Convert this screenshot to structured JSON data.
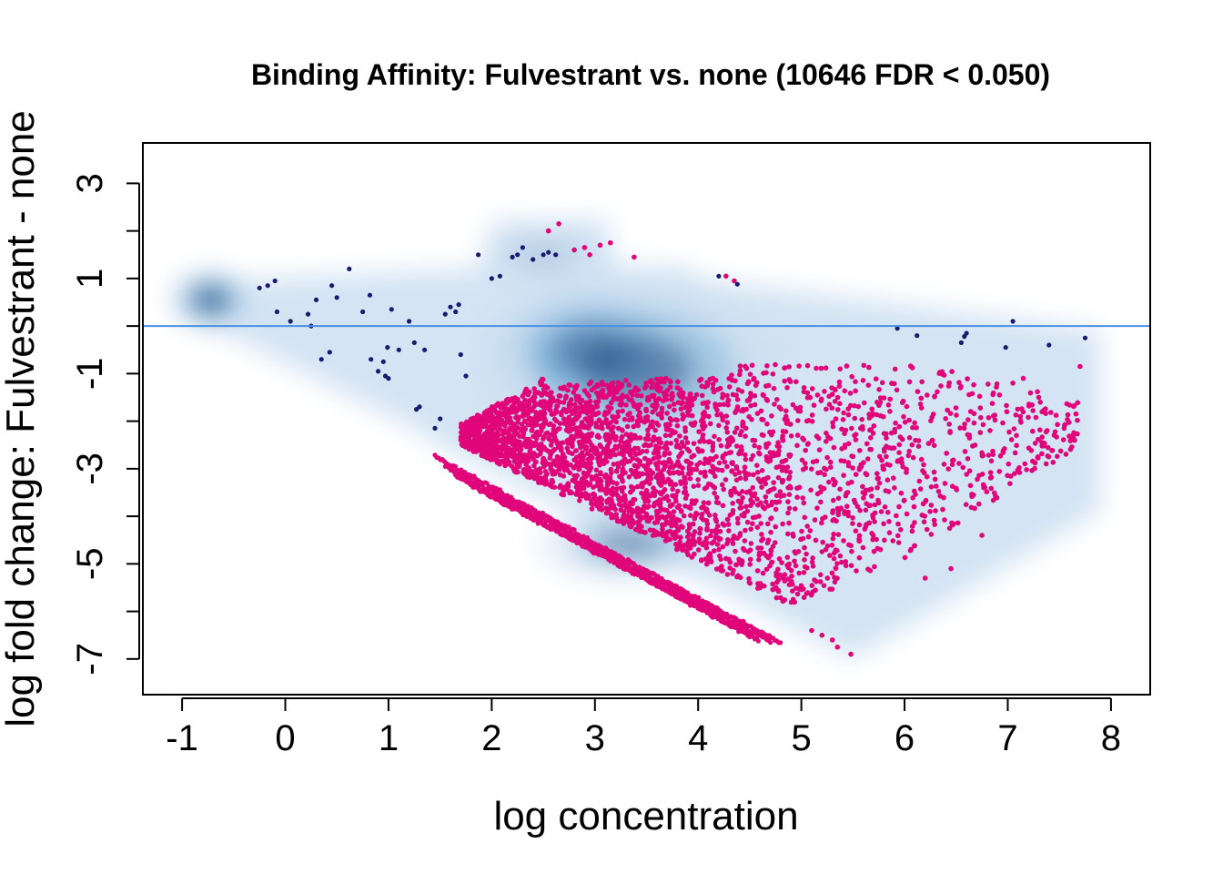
{
  "chart_data": {
    "type": "scatter",
    "title": "Binding Affinity: Fulvestrant vs. none (10646 FDR < 0.050)",
    "xlabel": "log concentration",
    "ylabel": "log fold change: Fulvestrant - none",
    "xlim": [
      -1.38,
      8.38
    ],
    "ylim": [
      -7.75,
      3.85
    ],
    "x_ticks": [
      -1,
      0,
      1,
      2,
      3,
      4,
      5,
      6,
      7,
      8
    ],
    "x_tick_labels": [
      "-1",
      "0",
      "1",
      "2",
      "3",
      "4",
      "5",
      "6",
      "7",
      "8"
    ],
    "y_ticks": [
      -7,
      -6,
      -5,
      -4,
      -3,
      -2,
      -1,
      0,
      1,
      2,
      3
    ],
    "y_tick_labels": [
      "-7",
      "",
      "-5",
      "",
      "-3",
      "",
      "-1",
      "",
      "1",
      "",
      "3"
    ],
    "reference_line_y": 0,
    "grid": false,
    "legend": "none",
    "colors": {
      "density_light": "#c6dbef",
      "density_mid": "#4292c6",
      "density_dark": "#08306b",
      "not_significant": "#1a1a6e",
      "significant": "#e0067a",
      "reference_line": "#4a90e2"
    },
    "density_regions": [
      {
        "x": -0.72,
        "y": 0.55,
        "sx": 0.22,
        "sy": 0.35,
        "w": 1.0
      },
      {
        "x": 2.95,
        "y": -0.5,
        "sx": 0.55,
        "sy": 0.75,
        "w": 1.0
      },
      {
        "x": 3.4,
        "y": -0.9,
        "sx": 0.8,
        "sy": 1.0,
        "w": 0.55
      },
      {
        "x": 3.3,
        "y": -4.6,
        "sx": 0.5,
        "sy": 0.45,
        "w": 0.45
      },
      {
        "x": 2.5,
        "y": 1.5,
        "sx": 0.4,
        "sy": 0.4,
        "w": 0.12
      }
    ],
    "nonsig_points": [
      [
        -0.25,
        0.8
      ],
      [
        -0.17,
        0.85
      ],
      [
        -0.1,
        0.95
      ],
      [
        -0.08,
        0.3
      ],
      [
        0.05,
        0.1
      ],
      [
        0.22,
        0.25
      ],
      [
        0.25,
        0.0
      ],
      [
        0.3,
        0.55
      ],
      [
        0.35,
        -0.7
      ],
      [
        0.43,
        -0.55
      ],
      [
        0.45,
        0.85
      ],
      [
        0.5,
        0.6
      ],
      [
        0.62,
        1.2
      ],
      [
        0.75,
        0.3
      ],
      [
        0.82,
        0.65
      ],
      [
        0.83,
        -0.7
      ],
      [
        0.9,
        -0.95
      ],
      [
        0.95,
        -0.75
      ],
      [
        0.97,
        -1.05
      ],
      [
        0.99,
        -0.45
      ],
      [
        1.0,
        -1.1
      ],
      [
        1.03,
        0.35
      ],
      [
        1.1,
        -0.5
      ],
      [
        1.2,
        0.1
      ],
      [
        1.25,
        -0.35
      ],
      [
        1.27,
        -1.75
      ],
      [
        1.35,
        -0.5
      ],
      [
        1.45,
        -2.15
      ],
      [
        1.55,
        0.25
      ],
      [
        1.6,
        0.4
      ],
      [
        1.65,
        0.3
      ],
      [
        1.68,
        0.45
      ],
      [
        1.7,
        -0.6
      ],
      [
        1.75,
        -1.05
      ],
      [
        1.87,
        1.5
      ],
      [
        2.0,
        1.0
      ],
      [
        2.08,
        1.05
      ],
      [
        2.2,
        1.45
      ],
      [
        2.25,
        1.5
      ],
      [
        2.3,
        1.65
      ],
      [
        2.4,
        1.4
      ],
      [
        2.5,
        1.5
      ],
      [
        2.55,
        1.55
      ],
      [
        2.62,
        1.5
      ],
      [
        4.2,
        1.05
      ],
      [
        4.38,
        0.88
      ],
      [
        5.93,
        -0.05
      ],
      [
        6.12,
        -0.2
      ],
      [
        6.55,
        -0.35
      ],
      [
        6.58,
        -0.22
      ],
      [
        6.6,
        -0.15
      ],
      [
        6.98,
        -0.45
      ],
      [
        7.05,
        0.1
      ],
      [
        7.4,
        -0.4
      ],
      [
        7.75,
        -0.25
      ],
      [
        1.5,
        -1.95
      ],
      [
        1.3,
        -1.7
      ]
    ]
  }
}
